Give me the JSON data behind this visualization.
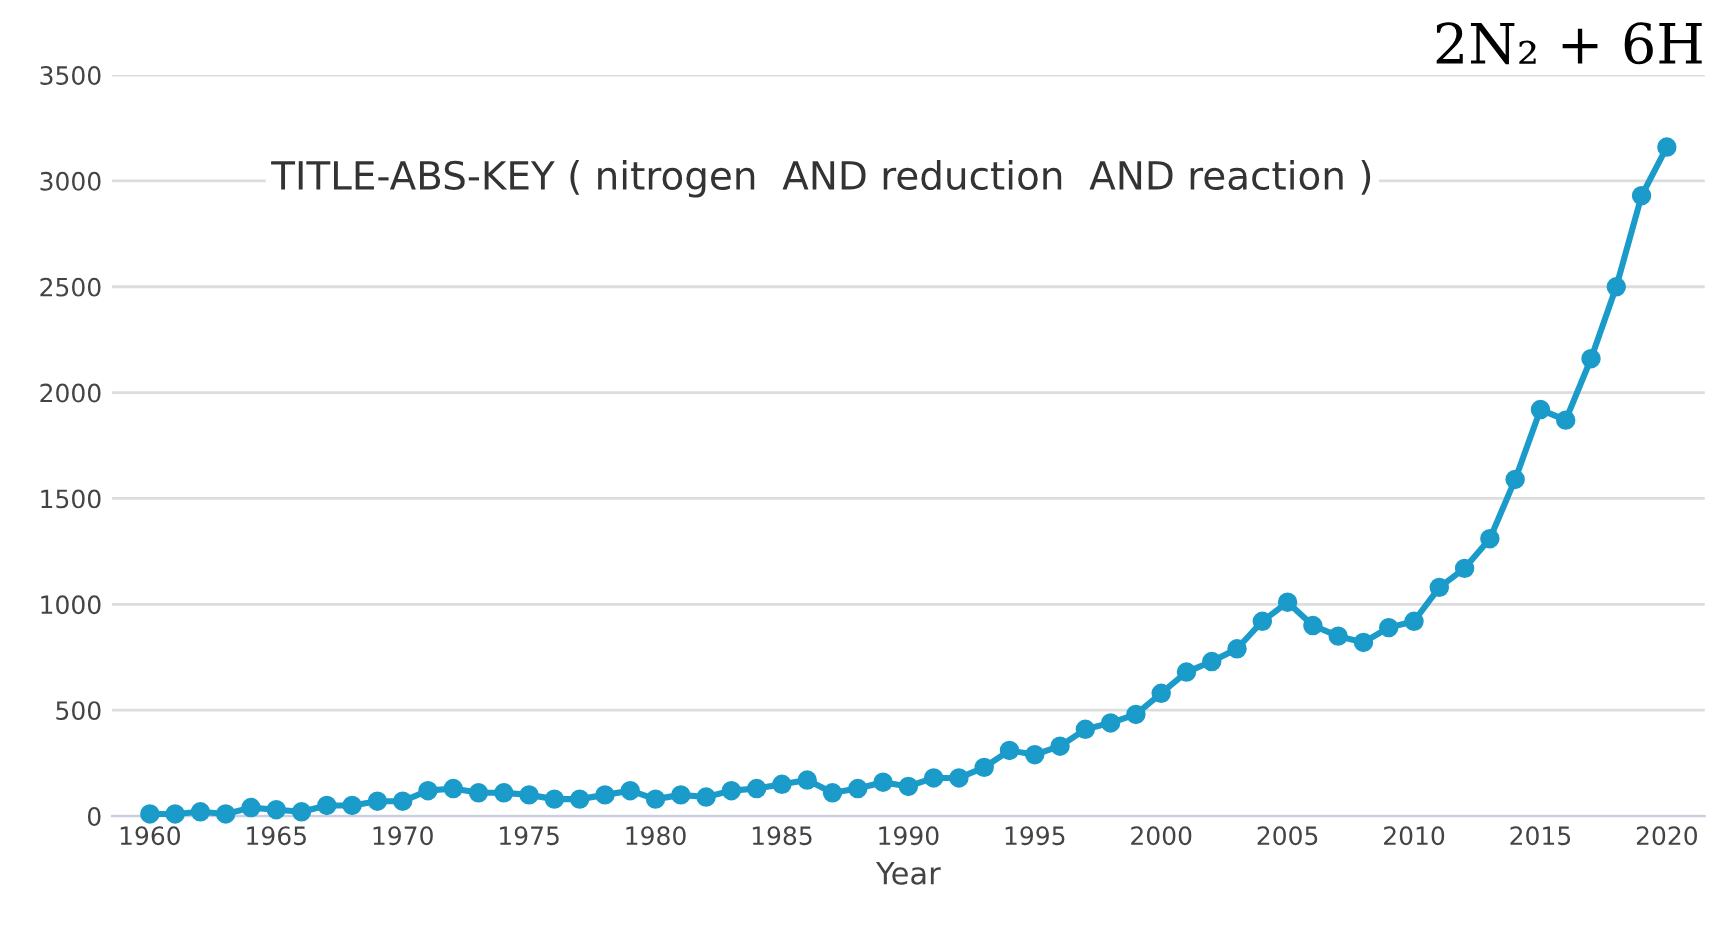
{
  "chart_data": {
    "type": "line",
    "xlabel": "Year",
    "annotations": [
      "TITLE-ABS-KEY ( nitrogen  AND reduction  AND reaction )",
      "2N₂ + 6H"
    ],
    "x": [
      1960,
      1961,
      1962,
      1963,
      1964,
      1965,
      1966,
      1967,
      1968,
      1969,
      1970,
      1971,
      1972,
      1973,
      1974,
      1975,
      1976,
      1977,
      1978,
      1979,
      1980,
      1981,
      1982,
      1983,
      1984,
      1985,
      1986,
      1987,
      1988,
      1989,
      1990,
      1991,
      1992,
      1993,
      1994,
      1995,
      1996,
      1997,
      1998,
      1999,
      2000,
      2001,
      2002,
      2003,
      2004,
      2005,
      2006,
      2007,
      2008,
      2009,
      2010,
      2011,
      2012,
      2013,
      2014,
      2015,
      2016,
      2017,
      2018,
      2019,
      2020
    ],
    "series": [
      {
        "color": "#1a9bc9",
        "values": [
          10,
          10,
          20,
          10,
          40,
          30,
          20,
          50,
          50,
          70,
          70,
          120,
          130,
          110,
          110,
          100,
          80,
          80,
          100,
          120,
          80,
          100,
          90,
          120,
          130,
          150,
          170,
          110,
          130,
          160,
          140,
          180,
          180,
          230,
          310,
          290,
          330,
          410,
          440,
          480,
          580,
          680,
          730,
          790,
          920,
          1010,
          900,
          850,
          820,
          890,
          920,
          1080,
          1170,
          1310,
          1590,
          1920,
          1870,
          2160,
          2500,
          2930,
          3160
        ]
      }
    ],
    "xlim": [
      1958.5,
      2021.5
    ],
    "ylim": [
      0,
      3500
    ],
    "xticks": [
      1960,
      1965,
      1970,
      1975,
      1980,
      1985,
      1990,
      1995,
      2000,
      2005,
      2010,
      2015,
      2020
    ],
    "yticks": [
      0,
      500,
      1000,
      1500,
      2000,
      2500,
      3000,
      3500
    ],
    "grid": "y",
    "marker": "circle",
    "line_style": "solid",
    "legend": false
  }
}
